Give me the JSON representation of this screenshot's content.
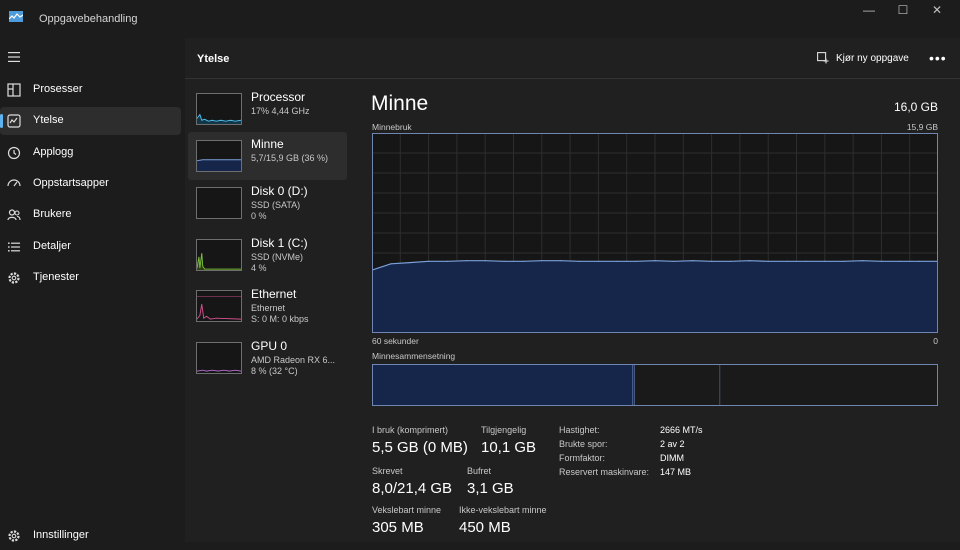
{
  "window": {
    "title": "Oppgavebehandling",
    "controls": [
      "—",
      "☐",
      "✕"
    ]
  },
  "nav": {
    "items": [
      {
        "label": "Prosesser",
        "icon": "processes-icon"
      },
      {
        "label": "Ytelse",
        "icon": "performance-icon"
      },
      {
        "label": "Applogg",
        "icon": "history-icon"
      },
      {
        "label": "Oppstartsapper",
        "icon": "startup-icon"
      },
      {
        "label": "Brukere",
        "icon": "users-icon"
      },
      {
        "label": "Detaljer",
        "icon": "details-icon"
      },
      {
        "label": "Tjenester",
        "icon": "services-icon"
      }
    ],
    "settings_label": "Innstillinger"
  },
  "header": {
    "title": "Ytelse",
    "run_task_label": "Kjør ny oppgave",
    "more_label": "•••"
  },
  "resources": [
    {
      "name": "Processor",
      "sub1": "17%  4,44 GHz",
      "sub2": "",
      "color": "#4cc2f1"
    },
    {
      "name": "Minne",
      "sub1": "5,7/15,9 GB (36 %)",
      "sub2": "",
      "color": "#7ba0d9"
    },
    {
      "name": "Disk 0 (D:)",
      "sub1": "SSD (SATA)",
      "sub2": "0 %",
      "color": "#7cbd3a"
    },
    {
      "name": "Disk 1 (C:)",
      "sub1": "SSD (NVMe)",
      "sub2": "4 %",
      "color": "#7cbd3a"
    },
    {
      "name": "Ethernet",
      "sub1": "Ethernet",
      "sub2": "S: 0 M: 0 kbps",
      "color": "#d05090"
    },
    {
      "name": "GPU 0",
      "sub1": "AMD Radeon RX 6...",
      "sub2": "8 %  (32 °C)",
      "color": "#b36bd0"
    }
  ],
  "detail": {
    "title": "Minne",
    "total": "16,0 GB",
    "usage_label": "Minnebruk",
    "usage_max": "15,9 GB",
    "time_label": "60 sekunder",
    "time_zero": "0",
    "composition_label": "Minnesammensetning",
    "stats": [
      {
        "label": "I bruk (komprimert)",
        "value": "5,5 GB (0 MB)"
      },
      {
        "label": "Tilgjengelig",
        "value": "10,1 GB"
      },
      {
        "label": "Skrevet",
        "value": "8,0/21,4 GB"
      },
      {
        "label": "Bufret",
        "value": "3,1 GB"
      },
      {
        "label": "Vekslebart minne",
        "value": "305 MB"
      },
      {
        "label": "Ikke-vekslebart minne",
        "value": "450 MB"
      }
    ],
    "specs": [
      {
        "label": "Hastighet:",
        "value": "2666 MT/s"
      },
      {
        "label": "Brukte spor:",
        "value": "2 av 2"
      },
      {
        "label": "Formfaktor:",
        "value": "DIMM"
      },
      {
        "label": "Reservert maskinvare:",
        "value": "147 MB"
      }
    ]
  },
  "chart_data": {
    "type": "area",
    "x": [
      60,
      58,
      56,
      54,
      52,
      50,
      48,
      46,
      44,
      42,
      40,
      38,
      36,
      34,
      32,
      30,
      28,
      26,
      24,
      22,
      20,
      18,
      16,
      14,
      12,
      10,
      8,
      6,
      4,
      2,
      0
    ],
    "values": [
      5.0,
      5.5,
      5.6,
      5.7,
      5.7,
      5.75,
      5.75,
      5.7,
      5.7,
      5.75,
      5.75,
      5.7,
      5.7,
      5.7,
      5.7,
      5.75,
      5.7,
      5.75,
      5.7,
      5.7,
      5.75,
      5.7,
      5.7,
      5.7,
      5.7,
      5.7,
      5.75,
      5.7,
      5.7,
      5.7,
      5.7
    ],
    "ylim": [
      0,
      15.9
    ],
    "xlim": [
      60,
      0
    ],
    "grid": true,
    "colors": {
      "line": "#7ba0d9",
      "fill": "#16264a",
      "grid": "#2e2e2e",
      "border": "#6f86b3"
    },
    "composition": {
      "segments": [
        {
          "value": 5.5,
          "fill": "#16264a"
        },
        {
          "value": 0.05,
          "fill": "#1e3160"
        },
        {
          "value": 1.8,
          "fill": "#1a1a1a"
        },
        {
          "value": 4.6,
          "fill": "#1a1a1a"
        }
      ],
      "max": 11.95
    }
  }
}
